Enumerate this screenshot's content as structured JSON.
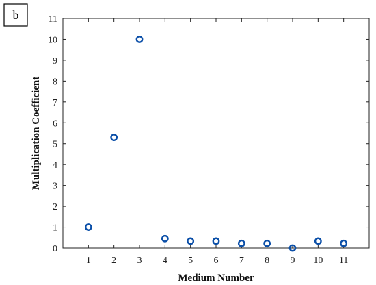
{
  "panel_label": "b",
  "chart_data": {
    "type": "scatter",
    "title": "",
    "xlabel": "Medium Number",
    "ylabel": "Multiplication Coefficient",
    "xlim": [
      0,
      12
    ],
    "ylim": [
      0,
      11
    ],
    "xticks": [
      1,
      2,
      3,
      4,
      5,
      6,
      7,
      8,
      9,
      10,
      11
    ],
    "yticks": [
      0,
      1,
      2,
      3,
      4,
      5,
      6,
      7,
      8,
      9,
      10,
      11
    ],
    "grid": false,
    "marker": "open-circle",
    "marker_color": "#0b4fa8",
    "x": [
      1,
      2,
      3,
      4,
      5,
      6,
      7,
      8,
      9,
      10,
      11
    ],
    "y": [
      1.0,
      5.3,
      10.0,
      0.45,
      0.33,
      0.33,
      0.22,
      0.22,
      0.0,
      0.33,
      0.22
    ]
  }
}
